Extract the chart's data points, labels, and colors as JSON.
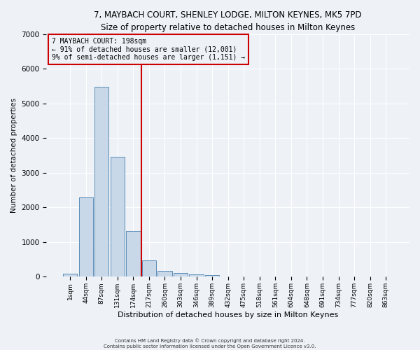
{
  "title": "7, MAYBACH COURT, SHENLEY LODGE, MILTON KEYNES, MK5 7PD",
  "subtitle": "Size of property relative to detached houses in Milton Keynes",
  "xlabel": "Distribution of detached houses by size in Milton Keynes",
  "ylabel": "Number of detached properties",
  "bar_color": "#c8d8e8",
  "bar_edge_color": "#5b8db8",
  "categories": [
    "1sqm",
    "44sqm",
    "87sqm",
    "131sqm",
    "174sqm",
    "217sqm",
    "260sqm",
    "303sqm",
    "346sqm",
    "389sqm",
    "432sqm",
    "475sqm",
    "518sqm",
    "561sqm",
    "604sqm",
    "648sqm",
    "691sqm",
    "734sqm",
    "777sqm",
    "820sqm",
    "863sqm"
  ],
  "values": [
    80,
    2280,
    5480,
    3450,
    1330,
    480,
    165,
    100,
    65,
    40,
    0,
    0,
    0,
    0,
    0,
    0,
    0,
    0,
    0,
    0,
    0
  ],
  "ylim": [
    0,
    7000
  ],
  "yticks": [
    0,
    1000,
    2000,
    3000,
    4000,
    5000,
    6000,
    7000
  ],
  "property_line_x": 4.5,
  "property_line_label": "7 MAYBACH COURT: 198sqm",
  "annotation_line1": "← 91% of detached houses are smaller (12,001)",
  "annotation_line2": "9% of semi-detached houses are larger (1,151) →",
  "red_line_color": "#cc0000",
  "footer_line1": "Contains HM Land Registry data © Crown copyright and database right 2024.",
  "footer_line2": "Contains public sector information licensed under the Open Government Licence v3.0.",
  "background_color": "#eef2f7",
  "grid_color": "#ffffff",
  "title_fontsize": 8.5,
  "subtitle_fontsize": 8.0,
  "ylabel_fontsize": 7.5,
  "xlabel_fontsize": 8.0,
  "ytick_fontsize": 7.5,
  "xtick_fontsize": 6.5,
  "annot_fontsize": 7.0,
  "footer_fontsize": 5.0
}
